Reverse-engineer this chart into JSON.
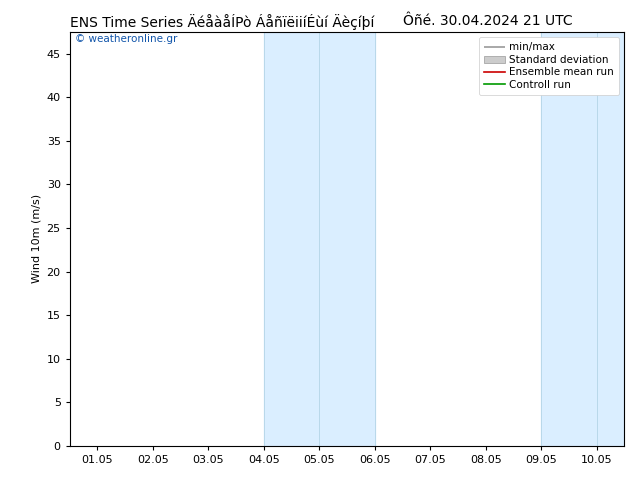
{
  "title_left": "ENS Time Series ÄéåèåÍPò ÁåñïëiiíÉùí Äèçíþí",
  "title_right": "Ôñé. 30.04.2024 21 UTC",
  "xlabel_ticks": [
    "01.05",
    "02.05",
    "03.05",
    "04.05",
    "05.05",
    "06.05",
    "07.05",
    "08.05",
    "09.05",
    "10.05"
  ],
  "ylabel": "Wind 10m (m/s)",
  "ylim": [
    0,
    47.5
  ],
  "yticks": [
    0,
    5,
    10,
    15,
    20,
    25,
    30,
    35,
    40,
    45
  ],
  "watermark": "© weatheronline.gr",
  "shaded_bands": [
    {
      "xstart": 3.0,
      "xend": 4.0,
      "color": "#daeeff"
    },
    {
      "xstart": 4.0,
      "xend": 5.0,
      "color": "#daeeff"
    },
    {
      "xstart": 8.0,
      "xend": 9.0,
      "color": "#daeeff"
    },
    {
      "xstart": 9.0,
      "xend": 9.8,
      "color": "#daeeff"
    }
  ],
  "band_dividers": [
    3.0,
    4.0,
    5.0,
    8.0,
    9.0,
    9.8
  ],
  "background_color": "#ffffff",
  "plot_bg_color": "#ffffff",
  "border_color": "#000000",
  "title_fontsize": 10,
  "axis_fontsize": 8,
  "tick_fontsize": 8
}
